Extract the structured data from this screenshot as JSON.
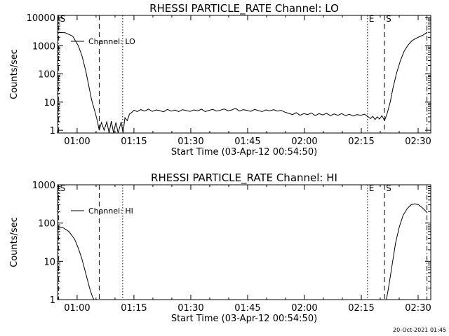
{
  "footer_timestamp": "20-Oct-2021 01:45",
  "chart_data": [
    {
      "type": "line",
      "title": "RHESSI PARTICLE_RATE Channel: LO",
      "xlabel": "Start Time (03-Apr-12 00:54:50)",
      "ylabel": "Counts/sec",
      "yscale": "log",
      "xlim": [
        0,
        98.5
      ],
      "ylim": [
        0.8,
        12000
      ],
      "xticks": [
        {
          "x": 5.17,
          "label": "01:00"
        },
        {
          "x": 20.17,
          "label": "01:15"
        },
        {
          "x": 35.17,
          "label": "01:30"
        },
        {
          "x": 50.17,
          "label": "01:45"
        },
        {
          "x": 65.17,
          "label": "02:00"
        },
        {
          "x": 80.17,
          "label": "02:15"
        },
        {
          "x": 95.17,
          "label": "02:30"
        }
      ],
      "yticks": [
        {
          "y": 1,
          "label": "1"
        },
        {
          "y": 10,
          "label": "10"
        },
        {
          "y": 100,
          "label": "100"
        },
        {
          "y": 1000,
          "label": "1000"
        },
        {
          "y": 10000,
          "label": "10000"
        }
      ],
      "legend": {
        "label": "Channel: LO",
        "position": "top-left"
      },
      "markers": [
        {
          "x": 0.3,
          "style": "dashdot",
          "label": "S"
        },
        {
          "x": 11.0,
          "style": "dashed",
          "label": ""
        },
        {
          "x": 17.2,
          "style": "dotted",
          "label": ""
        },
        {
          "x": 81.8,
          "style": "dotted",
          "label": "E"
        },
        {
          "x": 86.3,
          "style": "dashed",
          "label": "S"
        },
        {
          "x": 97.5,
          "style": "dashdot",
          "label": ""
        }
      ],
      "series": [
        {
          "name": "Channel: LO",
          "x": [
            0,
            2,
            4,
            5.5,
            6.5,
            7.5,
            8.3,
            9,
            9.8,
            10.5,
            11,
            11.6,
            12.3,
            13,
            13.6,
            14.2,
            14.8,
            15.4,
            16,
            16.8,
            17.3,
            17.8,
            18.4,
            19,
            19.6,
            20.2,
            21,
            22,
            23,
            24,
            25,
            26,
            27,
            28,
            29,
            30,
            31,
            32,
            33,
            34,
            35,
            36,
            37,
            38,
            39,
            40,
            41,
            42,
            43,
            44,
            45,
            46,
            47,
            48,
            49,
            50,
            51,
            52,
            53,
            54,
            55,
            56,
            57,
            58,
            59,
            60,
            61,
            62,
            63,
            64,
            65,
            66,
            67,
            68,
            69,
            70,
            71,
            72,
            73,
            74,
            75,
            76,
            77,
            78,
            79,
            80,
            81,
            82,
            82.6,
            83.2,
            83.8,
            84.4,
            85,
            85.6,
            86.3,
            87,
            87.8,
            88.6,
            89.5,
            90.5,
            91.5,
            92.5,
            93.5,
            94.5,
            95.5,
            96.5,
            97.5
          ],
          "y": [
            3000,
            2900,
            2200,
            1000,
            420,
            120,
            35,
            12,
            5,
            2.2,
            1,
            1.9,
            1,
            2,
            0.8,
            2.1,
            0.8,
            1.9,
            0.8,
            2,
            0.8,
            2.8,
            2.2,
            3.8,
            4.3,
            5.2,
            4.6,
            5.4,
            4.8,
            5.6,
            4.7,
            5.3,
            5.0,
            4.5,
            5.5,
            4.8,
            5.2,
            4.6,
            5.4,
            5.0,
            4.7,
            5.3,
            4.9,
            5.6,
            4.6,
            5.1,
            5.5,
            4.8,
            5.2,
            5.7,
            4.9,
            5.3,
            6.0,
            4.8,
            5.4,
            5.1,
            4.7,
            5.5,
            5.0,
            4.6,
            5.3,
            4.9,
            5.4,
            4.8,
            5.1,
            4.4,
            4.0,
            3.6,
            4.2,
            3.4,
            3.9,
            3.6,
            4.1,
            3.3,
            3.9,
            3.5,
            4.0,
            3.3,
            3.8,
            3.4,
            3.9,
            3.3,
            3.7,
            3.2,
            3.6,
            3.4,
            3.7,
            3.0,
            2.6,
            3.1,
            2.4,
            3.0,
            2.5,
            3.3,
            2.2,
            4,
            10,
            35,
            110,
            300,
            650,
            1050,
            1500,
            1800,
            2100,
            2400,
            3000
          ]
        }
      ]
    },
    {
      "type": "line",
      "title": "RHESSI PARTICLE_RATE Channel: HI",
      "xlabel": "Start Time (03-Apr-12 00:54:50)",
      "ylabel": "Counts/sec",
      "yscale": "log",
      "xlim": [
        0,
        98.5
      ],
      "ylim": [
        1,
        1000
      ],
      "xticks": [
        {
          "x": 5.17,
          "label": "01:00"
        },
        {
          "x": 20.17,
          "label": "01:15"
        },
        {
          "x": 35.17,
          "label": "01:30"
        },
        {
          "x": 50.17,
          "label": "01:45"
        },
        {
          "x": 65.17,
          "label": "02:00"
        },
        {
          "x": 80.17,
          "label": "02:15"
        },
        {
          "x": 95.17,
          "label": "02:30"
        }
      ],
      "yticks": [
        {
          "y": 1,
          "label": "1"
        },
        {
          "y": 10,
          "label": "10"
        },
        {
          "y": 100,
          "label": "100"
        },
        {
          "y": 1000,
          "label": "1000"
        }
      ],
      "legend": {
        "label": "Channel: HI",
        "position": "top-left"
      },
      "markers": [
        {
          "x": 0.3,
          "style": "dashdot",
          "label": "S"
        },
        {
          "x": 11.0,
          "style": "dashed",
          "label": ""
        },
        {
          "x": 17.2,
          "style": "dotted",
          "label": ""
        },
        {
          "x": 81.8,
          "style": "dotted",
          "label": "E"
        },
        {
          "x": 86.3,
          "style": "dashed",
          "label": "S"
        },
        {
          "x": 97.5,
          "style": "dashdot",
          "label": ""
        }
      ],
      "series": [
        {
          "name": "Channel: HI",
          "x": [
            0,
            1.5,
            3,
            4.5,
            5.5,
            6.5,
            7.3,
            8,
            8.6,
            9.2,
            9.6
          ],
          "y": [
            80,
            75,
            60,
            38,
            22,
            11,
            5.5,
            3,
            1.8,
            1.2,
            1
          ]
        },
        {
          "name": "Channel: HI",
          "x": [
            86.8,
            87.5,
            88.3,
            89.2,
            90.2,
            91.2,
            92.3,
            93.3,
            94.3,
            95.3,
            96.3,
            97.5
          ],
          "y": [
            1,
            2.5,
            8,
            30,
            80,
            160,
            240,
            300,
            320,
            300,
            250,
            190
          ]
        }
      ]
    }
  ]
}
